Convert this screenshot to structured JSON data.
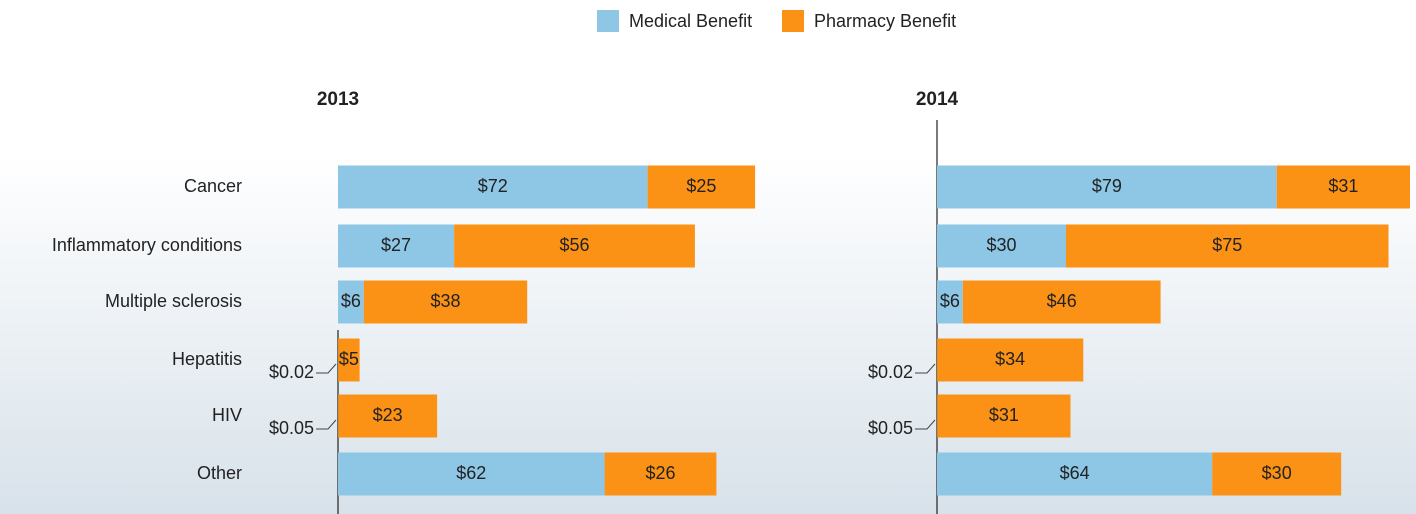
{
  "chart_data": {
    "type": "bar",
    "orientation": "horizontal",
    "stacked": true,
    "categories": [
      "Cancer",
      "Inflammatory conditions",
      "Multiple sclerosis",
      "Hepatitis",
      "HIV",
      "Other"
    ],
    "series": [
      {
        "name": "Medical Benefit",
        "color": "#8ec6e6"
      },
      {
        "name": "Pharmacy Benefit",
        "color": "#fb9215"
      }
    ],
    "panels": [
      {
        "title": "2013",
        "xlim": [
          0,
          110
        ],
        "series": [
          {
            "values": [
              72,
              27,
              6,
              0.02,
              0.05,
              62
            ],
            "value_labels": [
              "$72",
              "$27",
              "$6",
              "$0.02",
              "$0.05",
              "$62"
            ]
          },
          {
            "values": [
              25,
              56,
              38,
              5,
              23,
              26
            ],
            "value_labels": [
              "$25",
              "$56",
              "$38",
              "$5",
              "$23",
              "$26"
            ]
          }
        ]
      },
      {
        "title": "2014",
        "xlim": [
          0,
          110
        ],
        "series": [
          {
            "values": [
              79,
              30,
              6,
              0.02,
              0.05,
              64
            ],
            "value_labels": [
              "$79",
              "$30",
              "$6",
              "$0.02",
              "$0.05",
              "$64"
            ]
          },
          {
            "values": [
              31,
              75,
              46,
              34,
              31,
              30
            ],
            "value_labels": [
              "$31",
              "$75",
              "$46",
              "$34",
              "$31",
              "$30"
            ]
          }
        ]
      }
    ]
  }
}
